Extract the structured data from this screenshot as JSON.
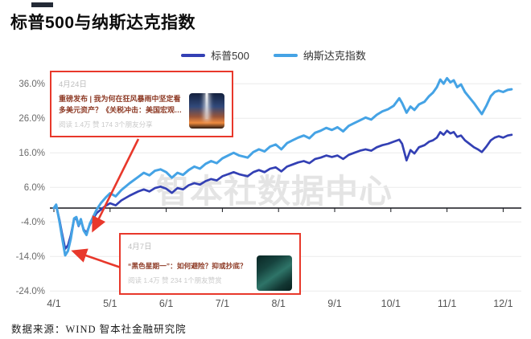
{
  "header": {
    "title": "标普500与纳斯达克指数"
  },
  "legend": {
    "items": [
      {
        "label": "标普500",
        "color": "#3340b4"
      },
      {
        "label": "纳斯达克指数",
        "color": "#45a3e5"
      }
    ]
  },
  "watermark": "智本社数据中心",
  "annotations": [
    {
      "date": "4月24日",
      "title": "重磅发布 | 我为何在狂风暴雨中坚定看多美元资产？《关税冲击：美国宏观经济与金...",
      "stats": "阅读 1.4万 赞 174 3个朋友分享",
      "thumbnail": "lightning-storm-sunset-image"
    },
    {
      "date": "4月7日",
      "title": "“黑色星期一”：如何避险？抑或抄底？",
      "stats": "阅读 1.4万 赞 234 1个朋友赞赏",
      "thumbnail": "dark-teal-sea-image"
    }
  ],
  "footer": {
    "source": "数据来源：WIND 智本社金融研究院"
  },
  "chart_data": {
    "type": "line",
    "title": "标普500与纳斯达克指数",
    "x_unit": "months since 4/1 (0 = 4/1, 8 = 12/1)",
    "x_tick_labels": [
      "4/1",
      "5/1",
      "6/1",
      "7/1",
      "8/1",
      "9/1",
      "10/1",
      "11/1",
      "12/1"
    ],
    "y_ticks": [
      36,
      26,
      16,
      6,
      -4,
      -14,
      -24
    ],
    "y_tick_labels": [
      "36.0%",
      "26.0%",
      "16.0%",
      "6.0%",
      "-4.0%",
      "-14.0%",
      "-24.0%"
    ],
    "ylim": [
      -27,
      40
    ],
    "zero_axis": true,
    "grid": "horizontal",
    "legend_position": "top-center",
    "series": [
      {
        "name": "标普500",
        "color": "#3340b4",
        "width": 2.7,
        "points": [
          [
            0,
            0
          ],
          [
            0.04,
            0.6
          ],
          [
            0.1,
            -3.5
          ],
          [
            0.14,
            -7
          ],
          [
            0.2,
            -11.8
          ],
          [
            0.25,
            -10.8
          ],
          [
            0.3,
            -8
          ],
          [
            0.36,
            -3.2
          ],
          [
            0.4,
            -3
          ],
          [
            0.44,
            -5.2
          ],
          [
            0.48,
            -3.6
          ],
          [
            0.53,
            -6.2
          ],
          [
            0.58,
            -7.2
          ],
          [
            0.64,
            -4.8
          ],
          [
            0.7,
            -3
          ],
          [
            0.76,
            -1.5
          ],
          [
            0.84,
            -0.4
          ],
          [
            0.92,
            0.6
          ],
          [
            1,
            1.4
          ],
          [
            1.1,
            0.8
          ],
          [
            1.2,
            2.2
          ],
          [
            1.35,
            3.6
          ],
          [
            1.5,
            4.8
          ],
          [
            1.6,
            5.4
          ],
          [
            1.7,
            4.8
          ],
          [
            1.8,
            5.8
          ],
          [
            1.9,
            6.2
          ],
          [
            2,
            5.6
          ],
          [
            2.1,
            4.4
          ],
          [
            2.2,
            5.8
          ],
          [
            2.3,
            5.4
          ],
          [
            2.4,
            6.6
          ],
          [
            2.5,
            7.2
          ],
          [
            2.6,
            6.8
          ],
          [
            2.7,
            7.8
          ],
          [
            2.8,
            8.4
          ],
          [
            2.9,
            8
          ],
          [
            3,
            9.2
          ],
          [
            3.1,
            9.8
          ],
          [
            3.2,
            10.4
          ],
          [
            3.3,
            9.8
          ],
          [
            3.45,
            9.2
          ],
          [
            3.55,
            10.4
          ],
          [
            3.65,
            11
          ],
          [
            3.75,
            10.4
          ],
          [
            3.85,
            11.4
          ],
          [
            3.95,
            11.8
          ],
          [
            4.05,
            10.6
          ],
          [
            4.15,
            12
          ],
          [
            4.25,
            12.6
          ],
          [
            4.35,
            13.2
          ],
          [
            4.45,
            13.6
          ],
          [
            4.55,
            13
          ],
          [
            4.65,
            14.2
          ],
          [
            4.75,
            14.6
          ],
          [
            4.85,
            15.2
          ],
          [
            4.95,
            14.8
          ],
          [
            5.05,
            15.2
          ],
          [
            5.15,
            14.2
          ],
          [
            5.25,
            15.4
          ],
          [
            5.35,
            16
          ],
          [
            5.45,
            16.6
          ],
          [
            5.55,
            17
          ],
          [
            5.65,
            16.6
          ],
          [
            5.75,
            17.6
          ],
          [
            5.85,
            18.2
          ],
          [
            5.95,
            18.6
          ],
          [
            6.05,
            19.2
          ],
          [
            6.15,
            19.8
          ],
          [
            6.2,
            18.6
          ],
          [
            6.28,
            13.8
          ],
          [
            6.35,
            16.8
          ],
          [
            6.42,
            15.8
          ],
          [
            6.5,
            17.6
          ],
          [
            6.6,
            18.2
          ],
          [
            6.68,
            19.2
          ],
          [
            6.75,
            19.6
          ],
          [
            6.82,
            20.4
          ],
          [
            6.88,
            22
          ],
          [
            6.94,
            21.2
          ],
          [
            7,
            22.4
          ],
          [
            7.06,
            21.6
          ],
          [
            7.12,
            22
          ],
          [
            7.18,
            20.6
          ],
          [
            7.25,
            21
          ],
          [
            7.32,
            19.6
          ],
          [
            7.4,
            18.6
          ],
          [
            7.48,
            17.6
          ],
          [
            7.55,
            17
          ],
          [
            7.62,
            16.2
          ],
          [
            7.7,
            17.8
          ],
          [
            7.78,
            19.6
          ],
          [
            7.85,
            20.4
          ],
          [
            7.92,
            20.8
          ],
          [
            8,
            20.4
          ],
          [
            8.08,
            21
          ],
          [
            8.15,
            21.2
          ]
        ]
      },
      {
        "name": "纳斯达克指数",
        "color": "#45a3e5",
        "width": 3,
        "points": [
          [
            0,
            0
          ],
          [
            0.04,
            1
          ],
          [
            0.1,
            -4
          ],
          [
            0.14,
            -8
          ],
          [
            0.2,
            -13.7
          ],
          [
            0.25,
            -12.4
          ],
          [
            0.3,
            -9
          ],
          [
            0.36,
            -3
          ],
          [
            0.4,
            -2.6
          ],
          [
            0.44,
            -5
          ],
          [
            0.48,
            -3.2
          ],
          [
            0.53,
            -6.5
          ],
          [
            0.58,
            -7.8
          ],
          [
            0.64,
            -4.5
          ],
          [
            0.7,
            -2.5
          ],
          [
            0.76,
            -0.5
          ],
          [
            0.84,
            1.5
          ],
          [
            0.92,
            3
          ],
          [
            1,
            4.3
          ],
          [
            1.1,
            3.4
          ],
          [
            1.2,
            5.2
          ],
          [
            1.35,
            7.2
          ],
          [
            1.5,
            9
          ],
          [
            1.6,
            10.2
          ],
          [
            1.7,
            9.5
          ],
          [
            1.8,
            10.8
          ],
          [
            1.9,
            11.2
          ],
          [
            2,
            10.4
          ],
          [
            2.1,
            8.8
          ],
          [
            2.2,
            10.2
          ],
          [
            2.3,
            9.6
          ],
          [
            2.4,
            11
          ],
          [
            2.5,
            12
          ],
          [
            2.6,
            11.4
          ],
          [
            2.7,
            12.8
          ],
          [
            2.8,
            13.6
          ],
          [
            2.9,
            13
          ],
          [
            3,
            14.4
          ],
          [
            3.1,
            15.2
          ],
          [
            3.2,
            16
          ],
          [
            3.3,
            15.2
          ],
          [
            3.45,
            14.6
          ],
          [
            3.55,
            16.2
          ],
          [
            3.65,
            17
          ],
          [
            3.75,
            16.4
          ],
          [
            3.85,
            17.8
          ],
          [
            3.95,
            18.4
          ],
          [
            4.05,
            17
          ],
          [
            4.15,
            18.8
          ],
          [
            4.25,
            19.6
          ],
          [
            4.35,
            20.4
          ],
          [
            4.45,
            21
          ],
          [
            4.55,
            20.2
          ],
          [
            4.65,
            21.8
          ],
          [
            4.75,
            22.4
          ],
          [
            4.85,
            23.2
          ],
          [
            4.95,
            22.6
          ],
          [
            5.05,
            23.4
          ],
          [
            5.15,
            22.2
          ],
          [
            5.25,
            23.8
          ],
          [
            5.35,
            24.6
          ],
          [
            5.45,
            25.4
          ],
          [
            5.55,
            26.2
          ],
          [
            5.65,
            25.6
          ],
          [
            5.75,
            27
          ],
          [
            5.85,
            28
          ],
          [
            5.95,
            28.6
          ],
          [
            6.05,
            29.6
          ],
          [
            6.15,
            31.8
          ],
          [
            6.2,
            30.4
          ],
          [
            6.28,
            27.6
          ],
          [
            6.35,
            29.4
          ],
          [
            6.42,
            28.4
          ],
          [
            6.5,
            30
          ],
          [
            6.6,
            30.8
          ],
          [
            6.68,
            32.4
          ],
          [
            6.75,
            33.4
          ],
          [
            6.82,
            35
          ],
          [
            6.88,
            37.2
          ],
          [
            6.94,
            36
          ],
          [
            7,
            37.6
          ],
          [
            7.06,
            36.4
          ],
          [
            7.12,
            37
          ],
          [
            7.18,
            35
          ],
          [
            7.25,
            35.8
          ],
          [
            7.32,
            33.6
          ],
          [
            7.4,
            32
          ],
          [
            7.48,
            30.4
          ],
          [
            7.55,
            28.8
          ],
          [
            7.62,
            27.2
          ],
          [
            7.7,
            29.6
          ],
          [
            7.78,
            32.4
          ],
          [
            7.85,
            33.6
          ],
          [
            7.92,
            34
          ],
          [
            8,
            33.6
          ],
          [
            8.08,
            34.2
          ],
          [
            8.15,
            34.4
          ]
        ]
      }
    ]
  }
}
